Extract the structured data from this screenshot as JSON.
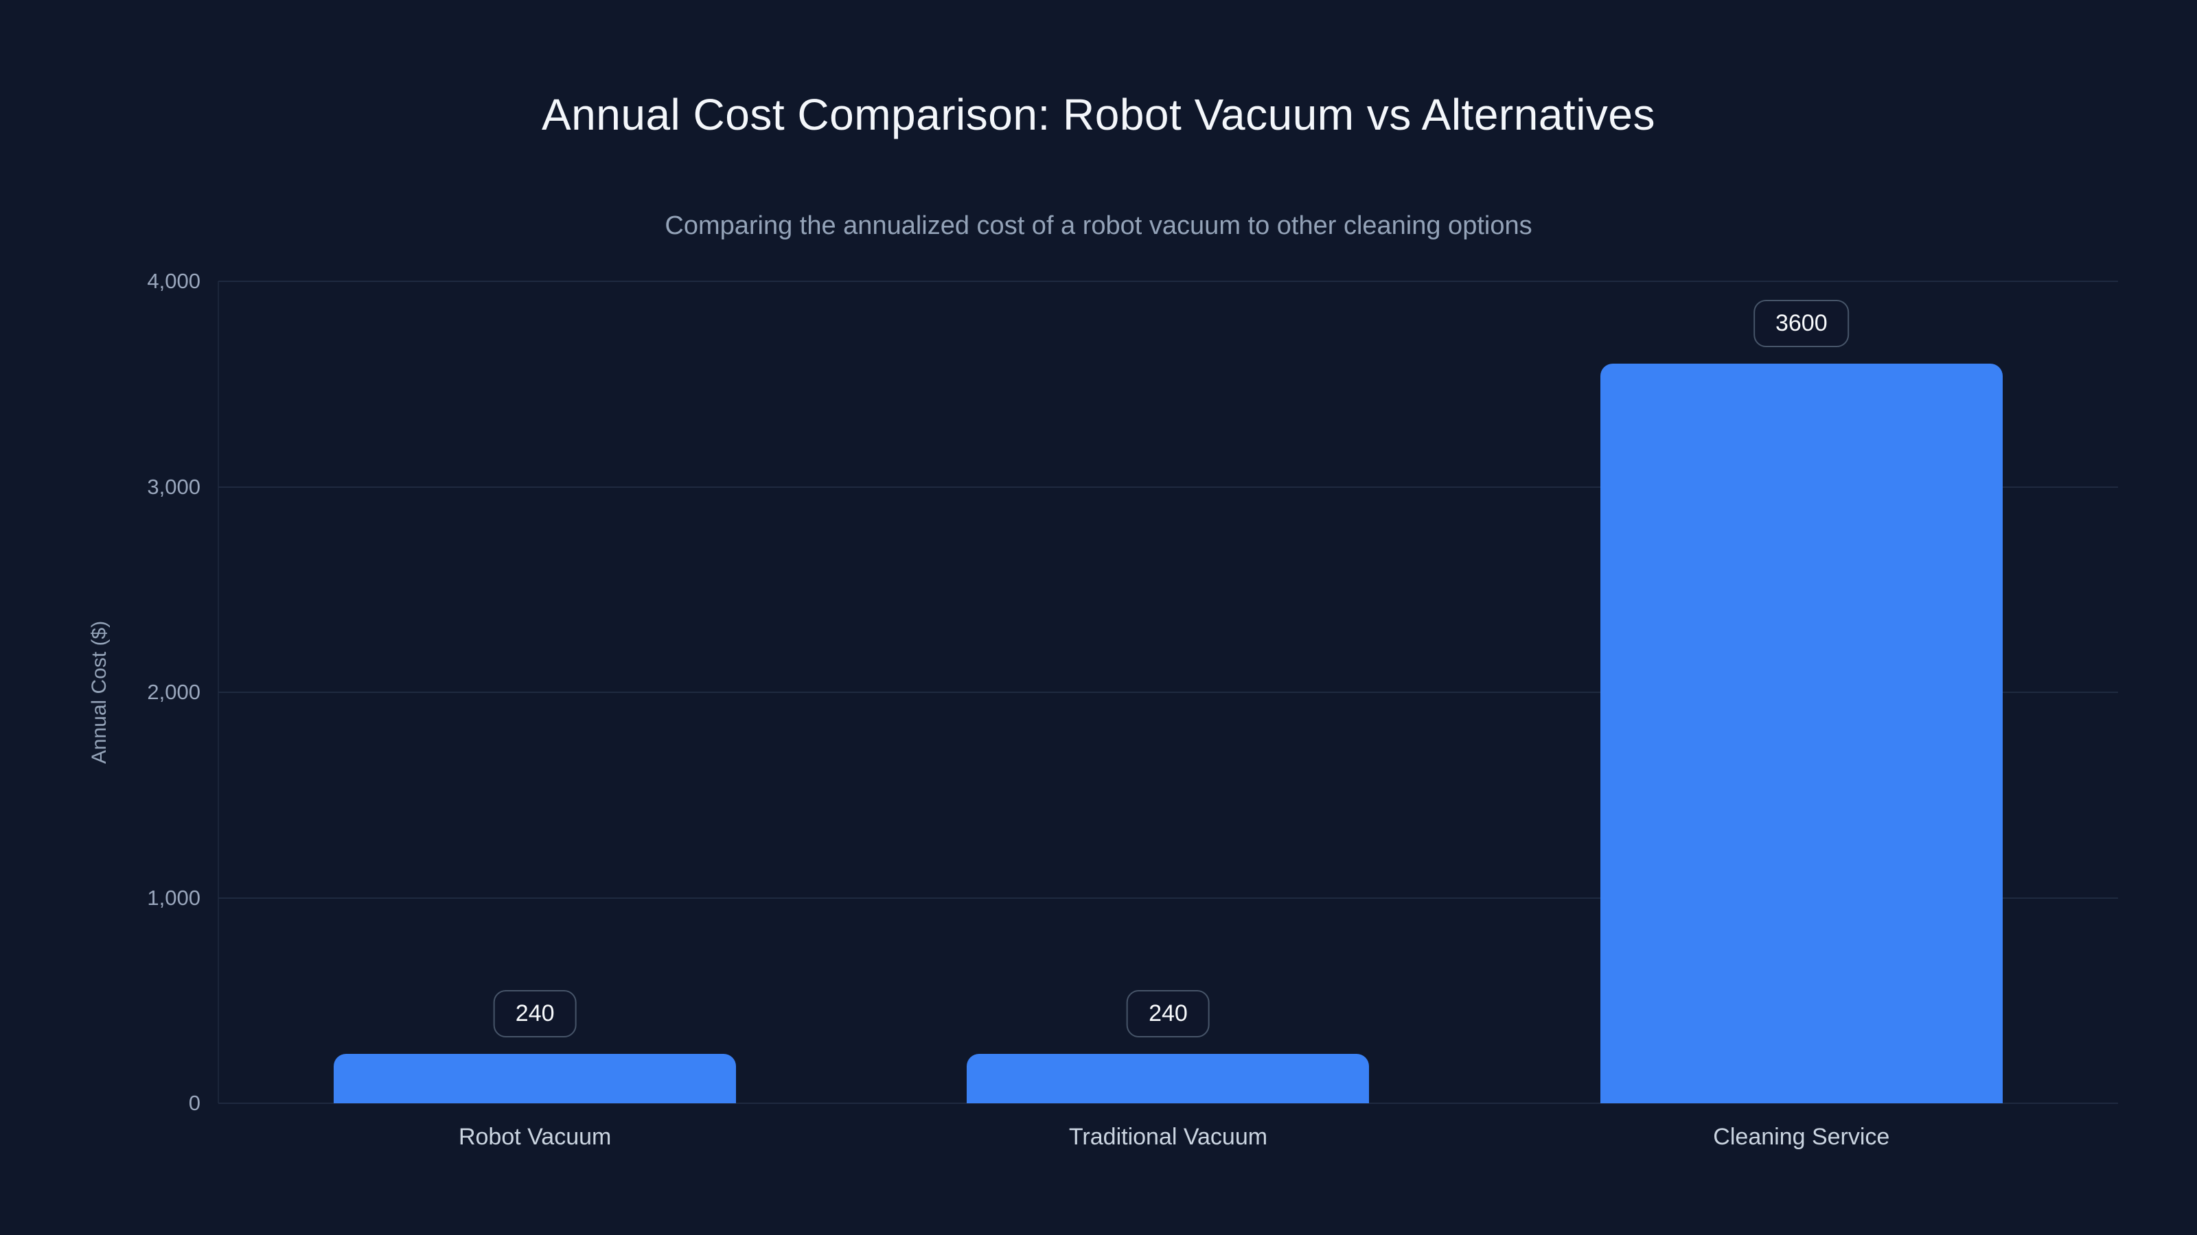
{
  "chart_data": {
    "type": "bar",
    "title": "Annual Cost Comparison: Robot Vacuum vs Alternatives",
    "subtitle": "Comparing the annualized cost of a robot vacuum to other cleaning options",
    "categories": [
      "Robot Vacuum",
      "Traditional Vacuum",
      "Cleaning Service"
    ],
    "values": [
      240,
      240,
      3600
    ],
    "value_labels": [
      "240",
      "240",
      "3600"
    ],
    "xlabel": "",
    "ylabel": "Annual Cost ($)",
    "ylim": [
      0,
      4000
    ],
    "yticks": [
      0,
      1000,
      2000,
      3000,
      4000
    ],
    "ytick_labels": [
      "0",
      "1,000",
      "2,000",
      "3,000",
      "4,000"
    ],
    "grid": "horizontal-only",
    "legend": "none",
    "colors": {
      "background": "#0f172a",
      "bar": "#3b82f6",
      "gridline": "#1f2a40",
      "title_text": "#f4f7fb",
      "subtitle_text": "#94a3b8",
      "tick_text": "#9aa7bd",
      "category_text": "#cbd5e1",
      "badge_border": "#475569",
      "badge_text": "#f8fafc"
    }
  }
}
